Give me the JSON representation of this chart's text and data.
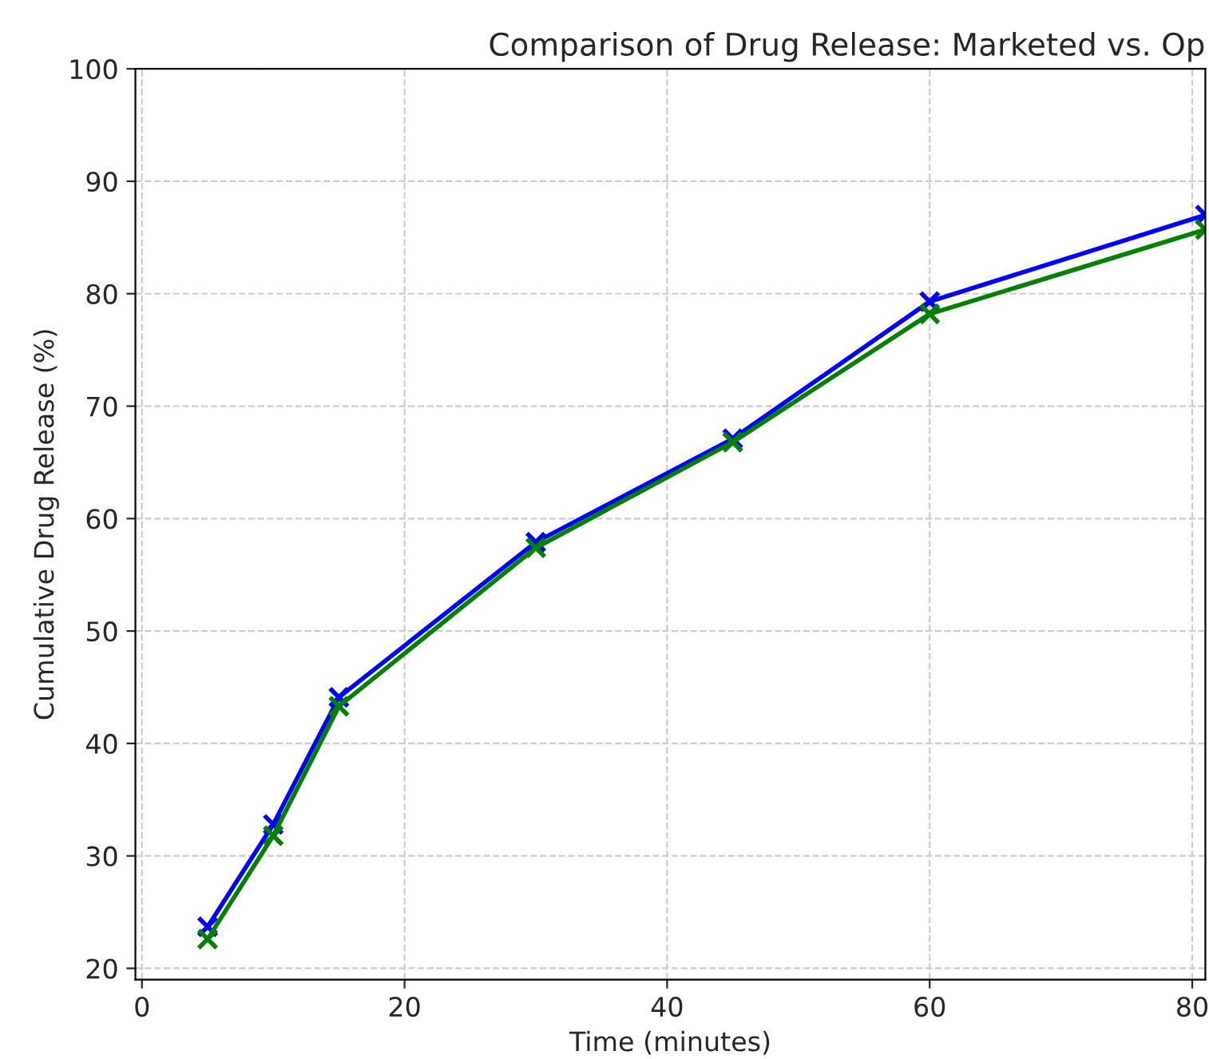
{
  "chart_data": {
    "type": "line",
    "title": "Comparison of Drug Release: Marketed vs. Op",
    "xlabel": "Time (minutes)",
    "ylabel": "Cumulative Drug Release (%)",
    "x": [
      5,
      10,
      15,
      30,
      45,
      60,
      81
    ],
    "series": [
      {
        "color": "#0000ff",
        "values": [
          23.7,
          32.8,
          44.1,
          57.9,
          67.1,
          79.3,
          87.0
        ]
      },
      {
        "color": "#008000",
        "values": [
          22.6,
          31.8,
          43.3,
          57.4,
          66.8,
          78.2,
          85.7
        ]
      }
    ],
    "xlim": [
      -0.5,
      81
    ],
    "xticks": [
      0,
      20,
      40,
      60,
      80
    ],
    "ylim": [
      19,
      100
    ],
    "yticks": [
      20,
      30,
      40,
      50,
      60,
      70,
      80,
      90,
      100
    ],
    "grid": true,
    "marker": "cross",
    "line_style": "solid"
  }
}
